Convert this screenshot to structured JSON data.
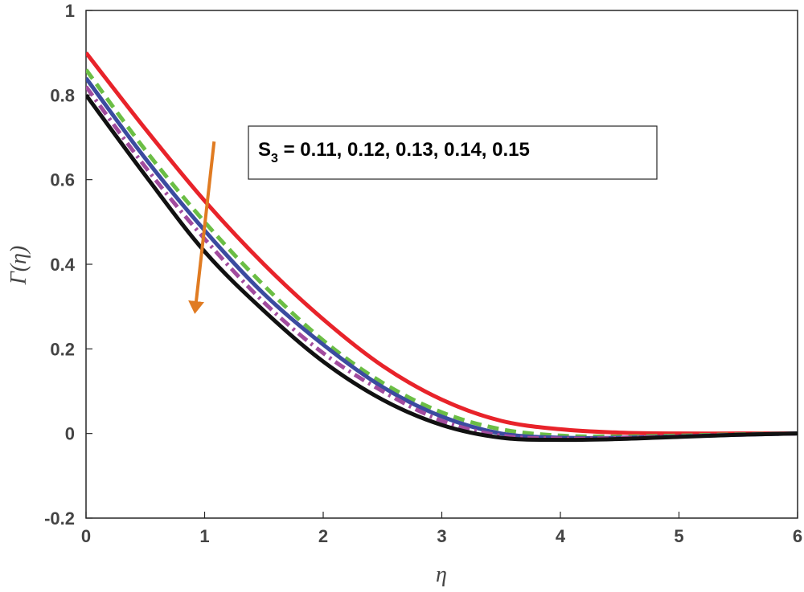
{
  "chart_data": {
    "type": "line",
    "title": "",
    "xlabel": "η",
    "ylabel": "Γ(η)",
    "xlim": [
      0,
      6
    ],
    "ylim": [
      -0.2,
      1
    ],
    "xticks": [
      "0",
      "1",
      "2",
      "3",
      "4",
      "5",
      "6"
    ],
    "yticks": [
      "-0.2",
      "0",
      "0.2",
      "0.4",
      "0.6",
      "0.8",
      "1"
    ],
    "grid": false,
    "annotation": {
      "symbol": "S",
      "subscript": "3",
      "text": " = 0.11, 0.12, 0.13, 0.14, 0.15",
      "arrow_color": "#E07B22",
      "arrow_from": [
        1.08,
        0.69
      ],
      "arrow_to": [
        0.92,
        0.29
      ]
    },
    "x": [
      0,
      0.5,
      1,
      1.5,
      2,
      2.5,
      3,
      3.5,
      4,
      4.5,
      5,
      5.5,
      6
    ],
    "series": [
      {
        "color": "#E8232A",
        "dash": "solid",
        "values": [
          0.9,
          0.72,
          0.55,
          0.4,
          0.27,
          0.16,
          0.08,
          0.03,
          0.01,
          0.002,
          0.0,
          0.0,
          0.0
        ]
      },
      {
        "color": "#6BBE45",
        "dash": "dash",
        "values": [
          0.86,
          0.67,
          0.5,
          0.35,
          0.22,
          0.12,
          0.05,
          0.01,
          -0.005,
          -0.007,
          -0.005,
          -0.002,
          0.0
        ]
      },
      {
        "color": "#3B4BA0",
        "dash": "solid",
        "values": [
          0.84,
          0.65,
          0.48,
          0.33,
          0.21,
          0.11,
          0.04,
          0.0,
          -0.01,
          -0.01,
          -0.007,
          -0.003,
          0.0
        ]
      },
      {
        "color": "#A24B9E",
        "dash": "dashdot",
        "values": [
          0.82,
          0.63,
          0.46,
          0.31,
          0.19,
          0.1,
          0.03,
          -0.005,
          -0.012,
          -0.011,
          -0.007,
          -0.003,
          0.0
        ]
      },
      {
        "color": "#111111",
        "dash": "solid",
        "values": [
          0.8,
          0.61,
          0.43,
          0.29,
          0.17,
          0.08,
          0.02,
          -0.01,
          -0.015,
          -0.013,
          -0.008,
          -0.003,
          0.0
        ]
      }
    ]
  }
}
